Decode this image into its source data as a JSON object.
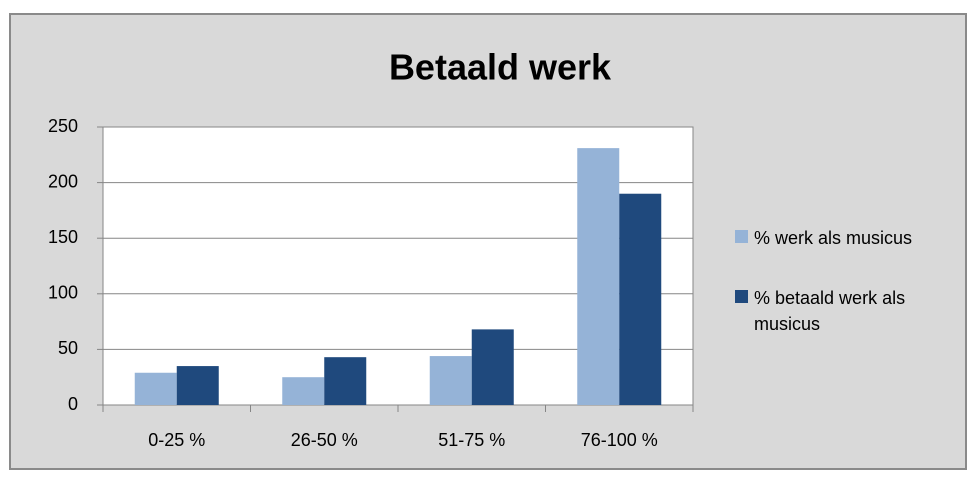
{
  "chart_data": {
    "type": "bar",
    "title": "Betaald werk",
    "categories": [
      "0-25 %",
      "26-50 %",
      "51-75 %",
      "76-100 %"
    ],
    "series": [
      {
        "name": "% werk als musicus",
        "color": "#95b3d7",
        "values": [
          29,
          25,
          44,
          231
        ]
      },
      {
        "name": "% betaald werk als musicus",
        "color": "#1f497d",
        "values": [
          35,
          43,
          68,
          190
        ]
      }
    ],
    "ylim": [
      0,
      250
    ],
    "yticks": [
      0,
      50,
      100,
      150,
      200,
      250
    ],
    "grid": true,
    "legend": "right"
  }
}
